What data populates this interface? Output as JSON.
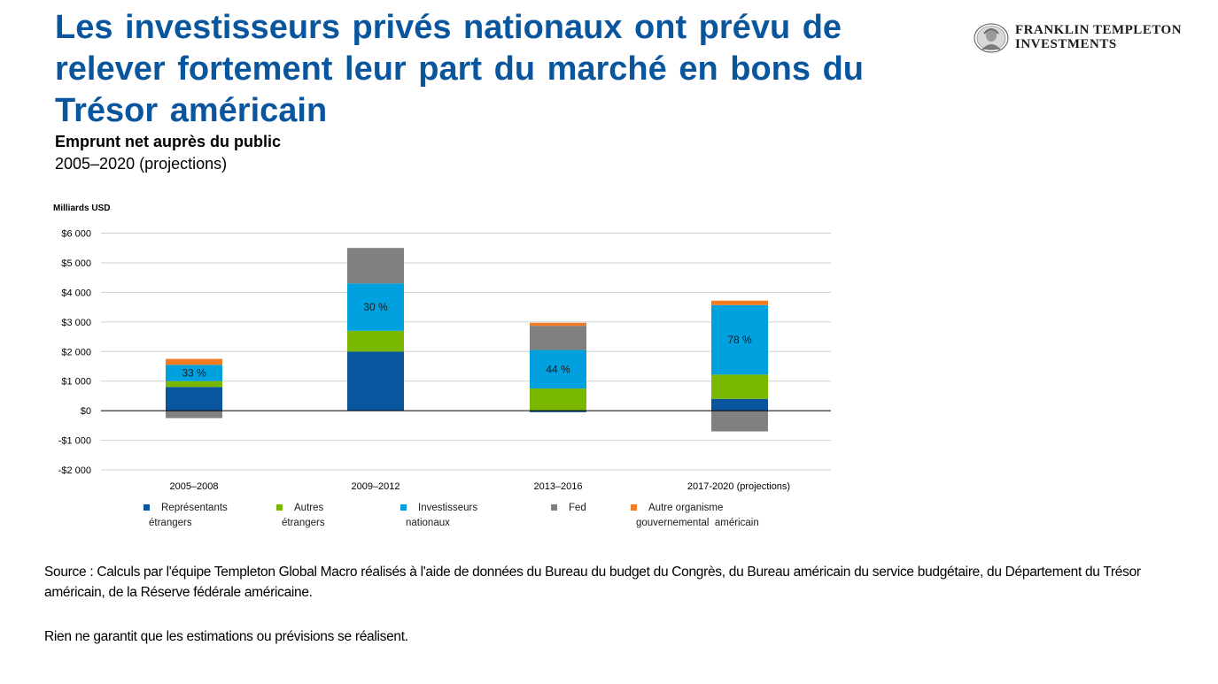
{
  "title": "Les investisseurs privés nationaux ont prévu de relever fortement leur part du marché en bons du Trésor américain",
  "subtitle": "Emprunt net auprès du public",
  "period": "2005–2020 (projections)",
  "logo": {
    "line1": "FRANKLIN TEMPLETON",
    "line2": "INVESTMENTS"
  },
  "chart_data": {
    "type": "bar",
    "stacked": true,
    "unit_label": "Milliards USD",
    "categories": [
      "2005–2008",
      "2009–2012",
      "2013–2016",
      "2017-2020  (projections)"
    ],
    "series": [
      {
        "name": "Représentants étrangers",
        "color": "#0a569e",
        "values": [
          800,
          2000,
          -50,
          400
        ]
      },
      {
        "name": "Autres étrangers",
        "color": "#7ab800",
        "values": [
          200,
          700,
          750,
          820
        ]
      },
      {
        "name": "Investisseurs nationaux",
        "color": "#00a1de",
        "values": [
          550,
          1600,
          1300,
          2350
        ]
      },
      {
        "name": "Fed",
        "color": "#808080",
        "values": [
          -250,
          1200,
          820,
          -700
        ]
      },
      {
        "name": "Autre organisme gouvernemental américain",
        "color": "#f47b20",
        "values": [
          200,
          0,
          100,
          150
        ]
      }
    ],
    "data_labels": [
      "33 %",
      "30 %",
      "44 %",
      "78 %"
    ],
    "ylim": [
      -2000,
      6000
    ],
    "yticks": [
      6000,
      5000,
      4000,
      3000,
      2000,
      1000,
      0,
      -1000,
      -2000
    ],
    "ytick_labels": [
      "$6 000",
      "$5 000",
      "$4 000",
      "$3 000",
      "$2 000",
      "$1 000",
      "$0",
      "-$1 000",
      "-$2 000"
    ],
    "grid": true,
    "legend_position": "bottom"
  },
  "legend_labels": [
    [
      "Représentants",
      "étrangers"
    ],
    [
      "Autres",
      "étrangers"
    ],
    [
      "Investisseurs",
      "nationaux"
    ],
    [
      "Fed",
      ""
    ],
    [
      "Autre organisme",
      "gouvernemental  américain"
    ]
  ],
  "source": "Source :  Calculs par l'équipe Templeton Global Macro réalisés à l'aide de données du Bureau du budget du Congrès, du Bureau américain du service budgétaire, du Département du Trésor américain, de la Réserve fédérale américaine.",
  "disclaimer": "Rien ne garantit que les estimations  ou prévisions se réalisent."
}
